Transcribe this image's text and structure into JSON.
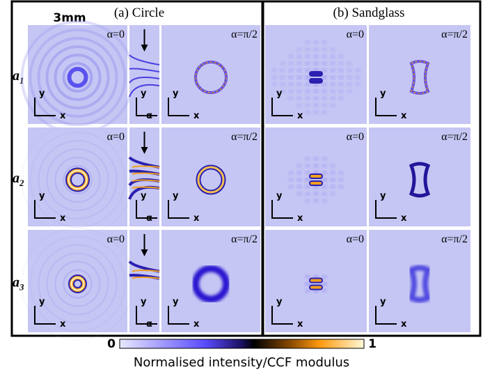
{
  "panel_a": {
    "title": "(a) Circle",
    "scale": "3mm"
  },
  "panel_b": {
    "title": "(b) Sandglass"
  },
  "rows": [
    {
      "letter": "a",
      "index": "1",
      "a_left": "α=0",
      "a_right": "α=π/2",
      "b_left": "α=0",
      "b_right": "α=π/2"
    },
    {
      "letter": "a",
      "index": "2",
      "a_left": "α=0",
      "a_right": "α=π/2",
      "b_left": "α=0",
      "b_right": "α=π/2"
    },
    {
      "letter": "a",
      "index": "3",
      "a_left": "α=0",
      "a_right": "α=π/2",
      "b_left": "α=0",
      "b_right": "α=π/2"
    }
  ],
  "axis_labels": {
    "x": "x",
    "y": "y",
    "alpha": "α"
  },
  "colorbar": {
    "min_label": "0",
    "max_label": "1",
    "label": "Normalised intensity/CCF modulus"
  }
}
